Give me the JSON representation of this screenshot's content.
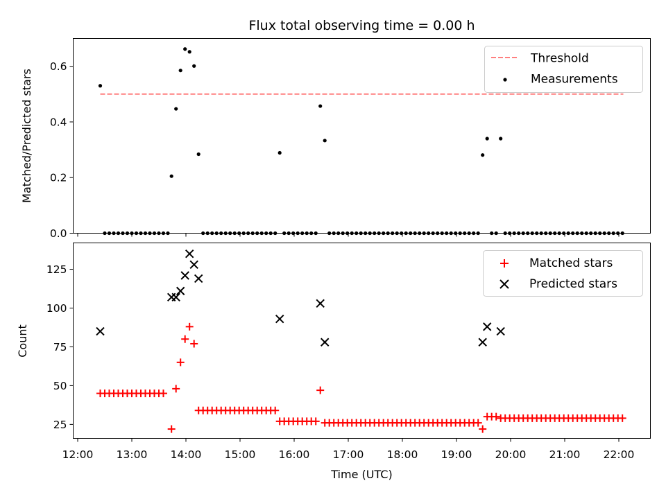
{
  "figure": {
    "title": "Flux total observing time = 0.00 h",
    "xlabel": "Time (UTC)"
  },
  "colors": {
    "threshold": "#ff7f7f",
    "measurements": "#000000",
    "matched": "#ff0000",
    "predicted": "#000000"
  },
  "chart_data": [
    {
      "type": "scatter",
      "ylabel": "Matched/Predicted stars",
      "xlim": [
        "11:55",
        "22:35"
      ],
      "ylim": [
        0,
        0.7
      ],
      "yticks": [
        0.0,
        0.2,
        0.4,
        0.6
      ],
      "ytick_labels": [
        "0.0",
        "0.2",
        "0.4",
        "0.6"
      ],
      "legend": {
        "placement": "top-right",
        "entries": [
          "Threshold",
          "Measurements"
        ]
      },
      "threshold": {
        "name": "Threshold",
        "y": 0.5,
        "x_range": [
          "12:25",
          "22:05"
        ]
      },
      "measurements": {
        "name": "Measurements",
        "points": [
          [
            "12:25",
            0.53
          ],
          [
            "13:44",
            0.205
          ],
          [
            "13:49",
            0.447
          ],
          [
            "13:54",
            0.585
          ],
          [
            "13:59",
            0.662
          ],
          [
            "14:04",
            0.652
          ],
          [
            "14:09",
            0.601
          ],
          [
            "14:14",
            0.284
          ],
          [
            "15:44",
            0.289
          ],
          [
            "16:29",
            0.457
          ],
          [
            "16:34",
            0.333
          ],
          [
            "19:29",
            0.281
          ],
          [
            "19:34",
            0.34
          ],
          [
            "19:49",
            0.34
          ]
        ],
        "zero_runs": [
          [
            "12:30",
            "13:40",
            5
          ],
          [
            "14:19",
            "15:39",
            5
          ],
          [
            "15:49",
            "16:24",
            5
          ],
          [
            "16:39",
            "19:24",
            5
          ],
          [
            "19:39",
            "19:44",
            5
          ],
          [
            "19:54",
            "22:04",
            5
          ]
        ]
      }
    },
    {
      "type": "scatter",
      "ylabel": "Count",
      "xlim": [
        "11:55",
        "22:35"
      ],
      "ylim": [
        16,
        142
      ],
      "yticks": [
        25,
        50,
        75,
        100,
        125
      ],
      "ytick_labels": [
        "25",
        "50",
        "75",
        "100",
        "125"
      ],
      "xticks": [
        "12:00",
        "13:00",
        "14:00",
        "15:00",
        "16:00",
        "17:00",
        "18:00",
        "19:00",
        "20:00",
        "21:00",
        "22:00"
      ],
      "legend": {
        "placement": "top-right",
        "entries": [
          "Matched stars",
          "Predicted stars"
        ]
      },
      "matched": {
        "name": "Matched stars",
        "points": [
          [
            "13:44",
            22
          ],
          [
            "13:49",
            48
          ],
          [
            "13:54",
            65
          ],
          [
            "13:59",
            80
          ],
          [
            "14:04",
            88
          ],
          [
            "14:09",
            77
          ],
          [
            "16:29",
            47
          ],
          [
            "19:29",
            22
          ]
        ],
        "runs": [
          [
            "12:25",
            "13:39",
            5,
            45
          ],
          [
            "14:14",
            "15:39",
            5,
            34
          ],
          [
            "15:44",
            "16:24",
            5,
            27
          ],
          [
            "16:34",
            "19:24",
            5,
            26
          ],
          [
            "19:34",
            "19:44",
            5,
            30
          ],
          [
            "19:49",
            "22:04",
            5,
            29
          ]
        ]
      },
      "predicted": {
        "name": "Predicted stars",
        "points": [
          [
            "12:25",
            85
          ],
          [
            "13:44",
            107
          ],
          [
            "13:49",
            107
          ],
          [
            "13:54",
            111
          ],
          [
            "13:59",
            121
          ],
          [
            "14:04",
            135
          ],
          [
            "14:09",
            128
          ],
          [
            "14:14",
            119
          ],
          [
            "15:44",
            93
          ],
          [
            "16:29",
            103
          ],
          [
            "16:34",
            78
          ],
          [
            "19:29",
            78
          ],
          [
            "19:34",
            88
          ],
          [
            "19:49",
            85
          ]
        ]
      }
    }
  ]
}
